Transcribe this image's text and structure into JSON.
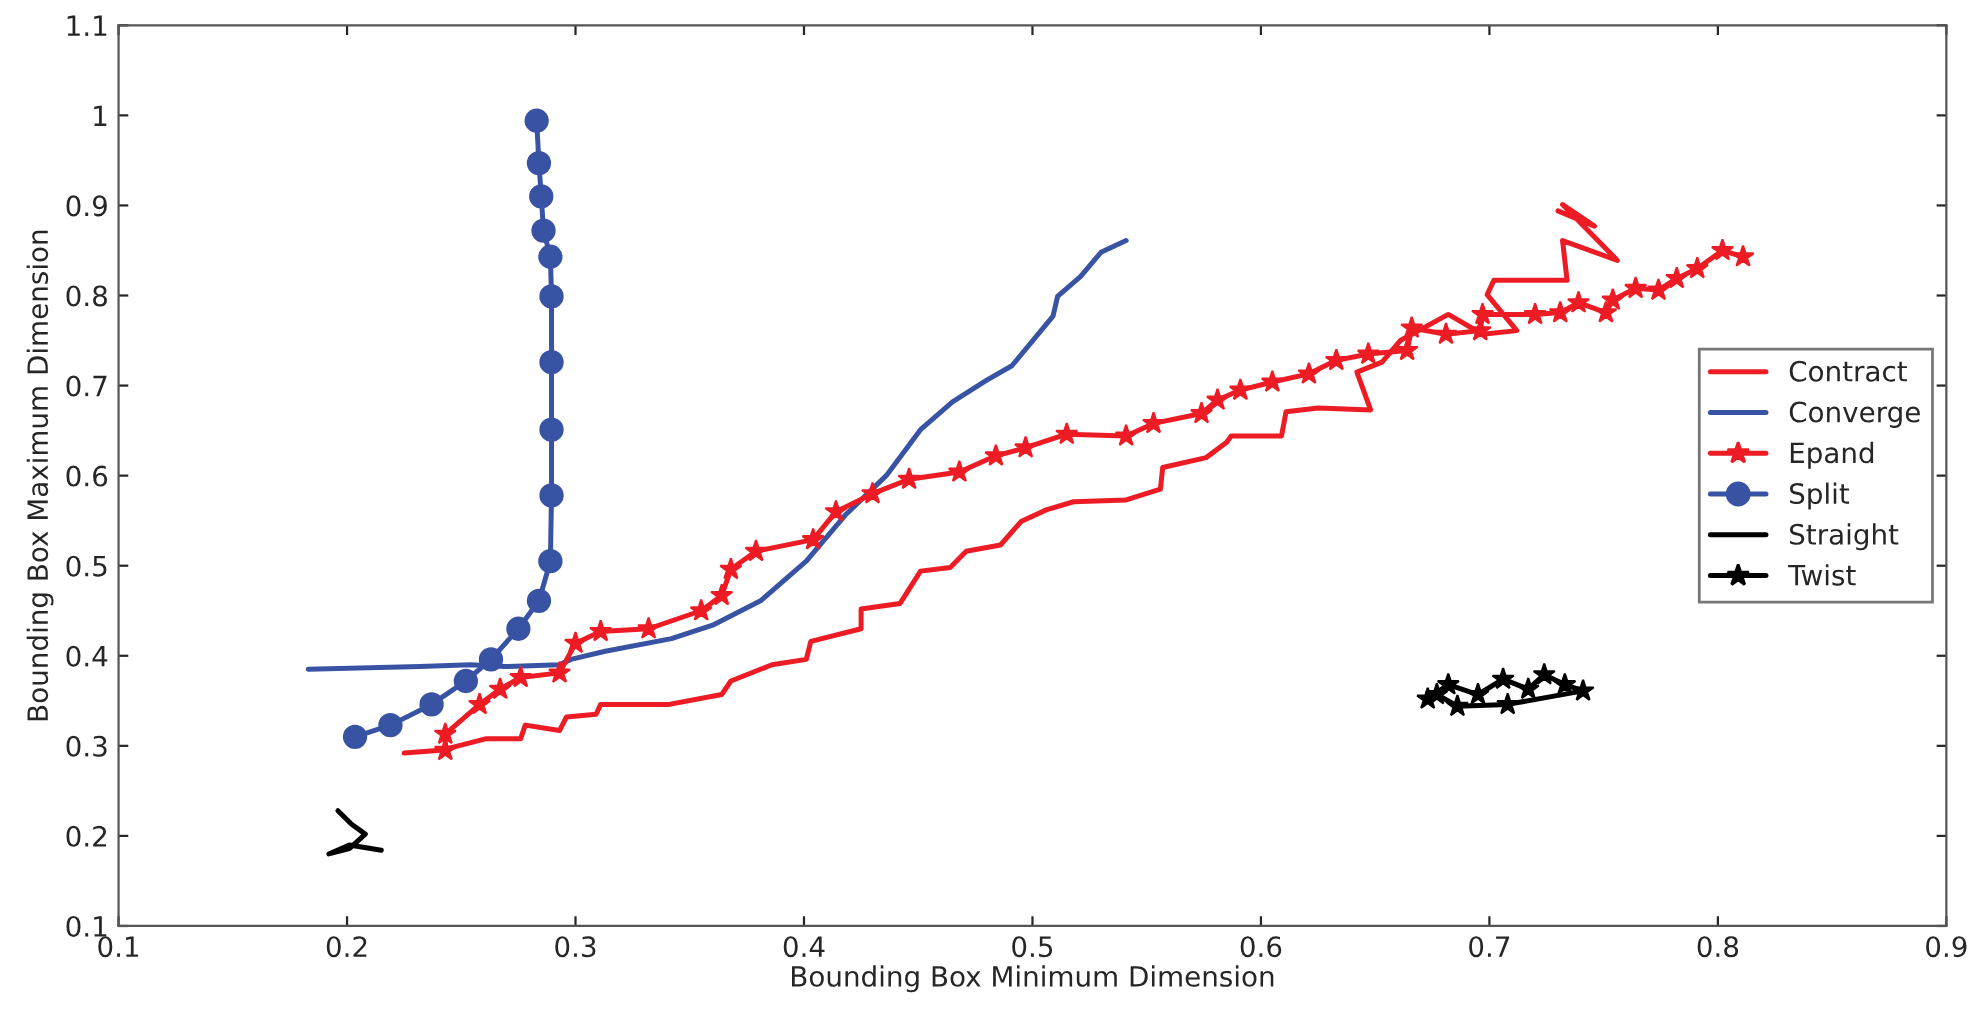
{
  "chart_data": {
    "type": "line",
    "xlabel": "Bounding Box Minimum Dimension",
    "ylabel": "Bounding Box Maximum Dimension",
    "xlim": [
      0.1,
      0.9
    ],
    "ylim": [
      0.1,
      1.1
    ],
    "xticks": [
      0.1,
      0.2,
      0.3,
      0.4,
      0.5,
      0.6,
      0.7,
      0.8,
      0.9
    ],
    "yticks": [
      0.1,
      0.2,
      0.3,
      0.4,
      0.5,
      0.6,
      0.7,
      0.8,
      0.9,
      1,
      1.1
    ],
    "grid": false,
    "legend": "right",
    "series": [
      {
        "name": "Contract",
        "color": "#ed1c24",
        "marker": "none",
        "x": [
          0.225,
          0.241,
          0.261,
          0.276,
          0.278,
          0.293,
          0.296,
          0.309,
          0.311,
          0.341,
          0.364,
          0.368,
          0.386,
          0.401,
          0.403,
          0.425,
          0.425,
          0.442,
          0.451,
          0.464,
          0.471,
          0.486,
          0.495,
          0.506,
          0.518,
          0.541,
          0.556,
          0.557,
          0.576,
          0.585,
          0.587,
          0.609,
          0.611,
          0.625,
          0.648,
          0.642,
          0.653,
          0.661,
          0.682,
          0.697,
          0.712,
          0.699,
          0.702,
          0.734,
          0.732,
          0.756,
          0.732,
          0.746,
          0.73
        ],
        "values": [
          0.292,
          0.295,
          0.308,
          0.308,
          0.323,
          0.317,
          0.332,
          0.335,
          0.346,
          0.346,
          0.357,
          0.372,
          0.39,
          0.396,
          0.416,
          0.43,
          0.452,
          0.458,
          0.494,
          0.498,
          0.516,
          0.523,
          0.549,
          0.562,
          0.571,
          0.573,
          0.585,
          0.609,
          0.62,
          0.637,
          0.644,
          0.644,
          0.671,
          0.675,
          0.673,
          0.715,
          0.726,
          0.75,
          0.779,
          0.757,
          0.761,
          0.801,
          0.817,
          0.817,
          0.861,
          0.839,
          0.901,
          0.877,
          0.894
        ]
      },
      {
        "name": "Converge",
        "color": "#3953a4",
        "marker": "none",
        "x": [
          0.183,
          0.232,
          0.254,
          0.269,
          0.293,
          0.298,
          0.313,
          0.342,
          0.36,
          0.381,
          0.401,
          0.418,
          0.436,
          0.451,
          0.465,
          0.48,
          0.491,
          0.509,
          0.511,
          0.521,
          0.53,
          0.541
        ],
        "values": [
          0.385,
          0.388,
          0.39,
          0.388,
          0.39,
          0.396,
          0.405,
          0.419,
          0.434,
          0.461,
          0.505,
          0.556,
          0.6,
          0.651,
          0.682,
          0.706,
          0.722,
          0.777,
          0.799,
          0.821,
          0.848,
          0.861
        ]
      },
      {
        "name": "Epand",
        "color": "#ed1c24",
        "marker": "star",
        "x": [
          0.243,
          0.243,
          0.258,
          0.267,
          0.276,
          0.293,
          0.3,
          0.311,
          0.332,
          0.355,
          0.364,
          0.368,
          0.379,
          0.404,
          0.414,
          0.43,
          0.446,
          0.468,
          0.484,
          0.497,
          0.515,
          0.541,
          0.553,
          0.574,
          0.581,
          0.591,
          0.605,
          0.621,
          0.633,
          0.647,
          0.664,
          0.666,
          0.681,
          0.696,
          0.697,
          0.72,
          0.731,
          0.739,
          0.751,
          0.754,
          0.764,
          0.774,
          0.782,
          0.791,
          0.802,
          0.811
        ],
        "values": [
          0.295,
          0.313,
          0.346,
          0.363,
          0.376,
          0.381,
          0.414,
          0.427,
          0.43,
          0.45,
          0.467,
          0.496,
          0.516,
          0.529,
          0.56,
          0.58,
          0.596,
          0.604,
          0.622,
          0.631,
          0.646,
          0.644,
          0.658,
          0.669,
          0.684,
          0.695,
          0.704,
          0.713,
          0.728,
          0.735,
          0.739,
          0.764,
          0.757,
          0.761,
          0.779,
          0.779,
          0.781,
          0.792,
          0.781,
          0.795,
          0.808,
          0.806,
          0.819,
          0.83,
          0.85,
          0.843
        ]
      },
      {
        "name": "Split",
        "color": "#3953a4",
        "marker": "circle",
        "x": [
          0.2035,
          0.219,
          0.237,
          0.252,
          0.263,
          0.275,
          0.284,
          0.289,
          0.2895,
          0.2895,
          0.2895,
          0.2895,
          0.289,
          0.286,
          0.285,
          0.284,
          0.283
        ],
        "values": [
          0.31,
          0.323,
          0.346,
          0.372,
          0.396,
          0.43,
          0.461,
          0.505,
          0.578,
          0.651,
          0.726,
          0.799,
          0.843,
          0.872,
          0.91,
          0.947,
          0.994
        ]
      },
      {
        "name": "Straight",
        "color": "#000000",
        "marker": "none",
        "x": [
          0.196,
          0.202,
          0.208,
          0.201,
          0.192,
          0.201,
          0.215
        ],
        "values": [
          0.228,
          0.213,
          0.202,
          0.186,
          0.18,
          0.19,
          0.184
        ]
      },
      {
        "name": "Twist",
        "color": "#000000",
        "marker": "star",
        "x": [
          0.673,
          0.682,
          0.695,
          0.706,
          0.717,
          0.724,
          0.733,
          0.741,
          0.708,
          0.686,
          0.677
        ],
        "values": [
          0.352,
          0.368,
          0.357,
          0.374,
          0.363,
          0.379,
          0.368,
          0.361,
          0.346,
          0.344,
          0.357
        ]
      }
    ]
  }
}
